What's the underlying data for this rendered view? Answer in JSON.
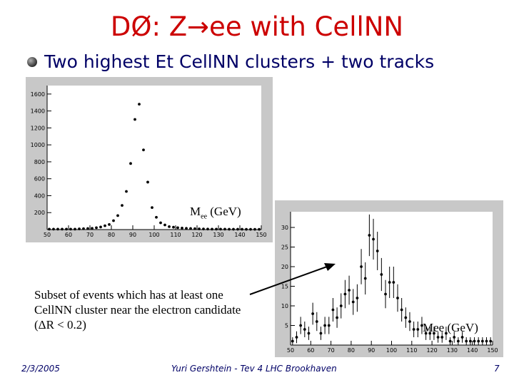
{
  "slide": {
    "title": "DØ: Z→ee with CellNN",
    "bullet": "Two highest Et CellNN clusters + two tracks",
    "note": "Subset of events which has at least one CellNN cluster near the electron candidate (ΔR < 0.2)",
    "footer_date": "2/3/2005",
    "footer_center": "Yuri Gershtein - Tev 4 LHC Brookhaven",
    "footer_page": "7"
  },
  "colors": {
    "title": "#cc0000",
    "bullet_text": "#000066",
    "plot_frame": "#c8c8c8",
    "plot_bg": "#ffffff",
    "marker": "#000000"
  },
  "chart_data": [
    {
      "type": "scatter",
      "title": "",
      "xlabel_main": "M",
      "xlabel_sub": "ee",
      "xlabel_unit": "(GeV)",
      "ylabel": "",
      "xlim": [
        50,
        150
      ],
      "ylim": [
        0,
        1700
      ],
      "xticks": [
        50,
        60,
        70,
        80,
        90,
        100,
        110,
        120,
        130,
        140,
        150
      ],
      "yticks": [
        200,
        400,
        600,
        800,
        1000,
        1200,
        1400,
        1600
      ],
      "grid": false,
      "x": [
        51,
        53,
        55,
        57,
        59,
        61,
        63,
        65,
        67,
        69,
        71,
        73,
        75,
        77,
        79,
        81,
        83,
        85,
        87,
        89,
        91,
        93,
        95,
        97,
        99,
        101,
        103,
        105,
        107,
        109,
        111,
        113,
        115,
        117,
        119,
        121,
        123,
        125,
        127,
        129,
        131,
        133,
        135,
        137,
        139,
        141,
        143,
        145,
        147,
        149
      ],
      "y": [
        5,
        5,
        5,
        5,
        5,
        5,
        5,
        8,
        10,
        12,
        15,
        22,
        30,
        45,
        60,
        105,
        165,
        285,
        450,
        780,
        1300,
        1480,
        940,
        560,
        260,
        145,
        80,
        55,
        35,
        28,
        22,
        18,
        15,
        12,
        10,
        8,
        7,
        6,
        5,
        5,
        5,
        5,
        4,
        4,
        4,
        4,
        3,
        3,
        3,
        3
      ]
    },
    {
      "type": "scatter",
      "title": "",
      "xlabel": "Mee (GeV)",
      "ylabel": "",
      "xlim": [
        50,
        150
      ],
      "ylim": [
        0,
        34
      ],
      "xticks": [
        50,
        60,
        70,
        80,
        90,
        100,
        110,
        120,
        130,
        140,
        150
      ],
      "yticks": [
        5,
        10,
        15,
        20,
        25,
        30
      ],
      "grid": false,
      "x": [
        51,
        53,
        55,
        57,
        59,
        61,
        63,
        65,
        67,
        69,
        71,
        73,
        75,
        77,
        79,
        81,
        83,
        85,
        87,
        89,
        91,
        93,
        95,
        97,
        99,
        101,
        103,
        105,
        107,
        109,
        111,
        113,
        115,
        117,
        119,
        121,
        123,
        125,
        127,
        129,
        131,
        133,
        135,
        137,
        139,
        141,
        143,
        145,
        147,
        149
      ],
      "y": [
        1,
        2,
        5,
        4,
        3,
        8,
        6,
        3,
        5,
        5,
        9,
        7,
        10,
        13,
        14,
        11,
        12,
        20,
        17,
        28,
        27,
        24,
        18,
        13,
        16,
        16,
        12,
        9,
        7,
        6,
        4,
        4,
        5,
        3,
        3,
        3,
        2,
        2,
        3,
        1,
        2,
        1,
        2,
        1,
        1,
        1,
        1,
        1,
        1,
        1
      ],
      "yerr": [
        1,
        1.5,
        2.2,
        2,
        1.7,
        2.8,
        2.4,
        1.7,
        2.2,
        2.2,
        3,
        2.6,
        3.2,
        3.6,
        3.7,
        3.3,
        3.5,
        4.5,
        4.1,
        5.3,
        5.2,
        4.9,
        4.2,
        3.6,
        4,
        4,
        3.5,
        3,
        2.6,
        2.4,
        2,
        2,
        2.2,
        1.7,
        1.7,
        1.7,
        1.4,
        1.4,
        1.7,
        1,
        1.4,
        1,
        1.4,
        1,
        1,
        1,
        1,
        1,
        1,
        1
      ]
    }
  ]
}
